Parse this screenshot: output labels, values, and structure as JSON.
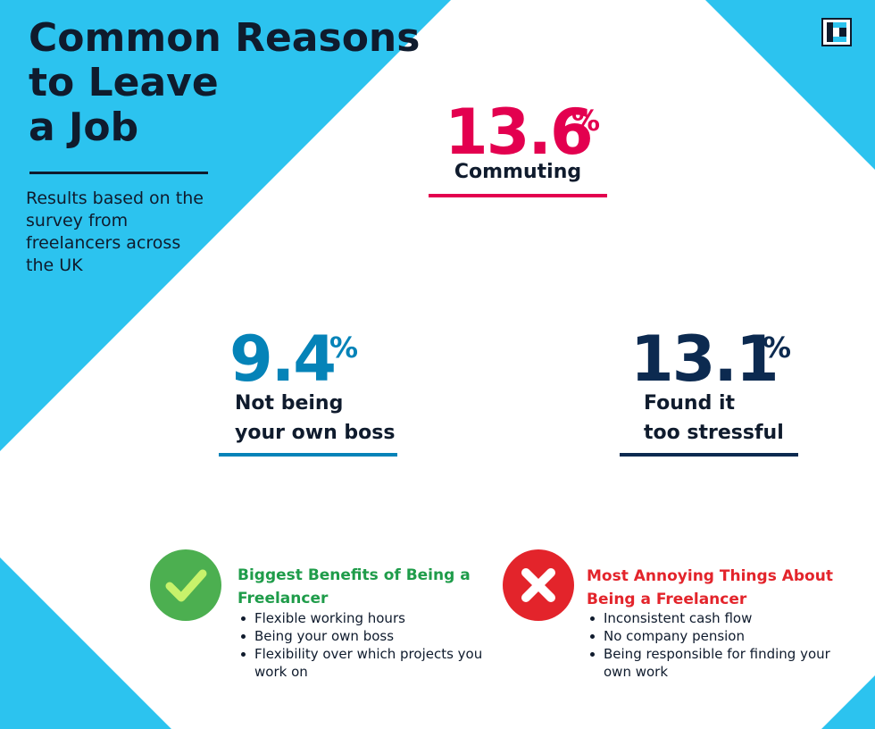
{
  "colors": {
    "background_blue": "#2cc3ef",
    "navy": "#0f1b2d",
    "commute_red": "#e3004f",
    "boss_blue": "#0583b8",
    "stress_navy": "#0c2a50",
    "benefit_green": "#4caf50",
    "annoy_red": "#e3242b"
  },
  "header": {
    "title_lines": [
      "Common Reasons",
      "to Leave",
      "a Job"
    ],
    "subtitle_lines": [
      "Results based on the",
      "survey from",
      "freelancers across",
      "the UK"
    ],
    "logo_icon": "brand-logo-icon"
  },
  "stats": {
    "commuting": {
      "value": "13.6",
      "unit": "%",
      "label_lines": [
        "Commuting"
      ]
    },
    "own_boss": {
      "value": "9.4",
      "unit": "%",
      "label_lines": [
        "Not being",
        "your own boss"
      ]
    },
    "stressful": {
      "value": "13.1",
      "unit": "%",
      "label_lines": [
        "Found it",
        "too stressful"
      ]
    }
  },
  "benefits": {
    "icon": "checkmark-icon",
    "title_lines": [
      "Biggest Benefits of Being a",
      "Freelancer"
    ],
    "items": [
      [
        "Flexible working hours"
      ],
      [
        "Being your own boss"
      ],
      [
        "Flexibility over which projects you",
        "work on"
      ]
    ]
  },
  "annoyances": {
    "icon": "cross-icon",
    "title_lines": [
      "Most Annoying Things About",
      "Being a Freelancer"
    ],
    "items": [
      [
        "Inconsistent cash flow"
      ],
      [
        "No company pension"
      ],
      [
        "Being responsible for finding your",
        "own work"
      ]
    ]
  }
}
